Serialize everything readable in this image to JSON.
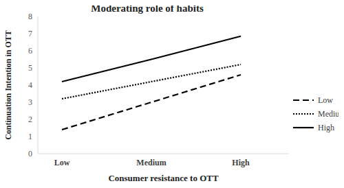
{
  "chart_data": {
    "type": "line",
    "title": "Moderating role of habits",
    "x_label": "Consumer resistance to OTT",
    "y_label": "Continuation Intention in OTT",
    "categories": [
      "Low",
      "Medium",
      "High"
    ],
    "series": [
      {
        "name": "Low",
        "color": "#000000",
        "line_style": "dashed",
        "values": [
          1.4,
          3.0,
          4.6
        ]
      },
      {
        "name": "Medium",
        "color": "#000000",
        "line_style": "dotted",
        "values": [
          3.2,
          4.2,
          5.2
        ]
      },
      {
        "name": "High",
        "color": "#000000",
        "line_style": "solid",
        "values": [
          4.2,
          5.5,
          6.85
        ]
      }
    ],
    "ylim": [
      0,
      8
    ],
    "yticks": [
      0,
      1,
      2,
      3,
      4,
      5,
      6,
      7,
      8
    ],
    "grid": false,
    "legend": "right"
  }
}
